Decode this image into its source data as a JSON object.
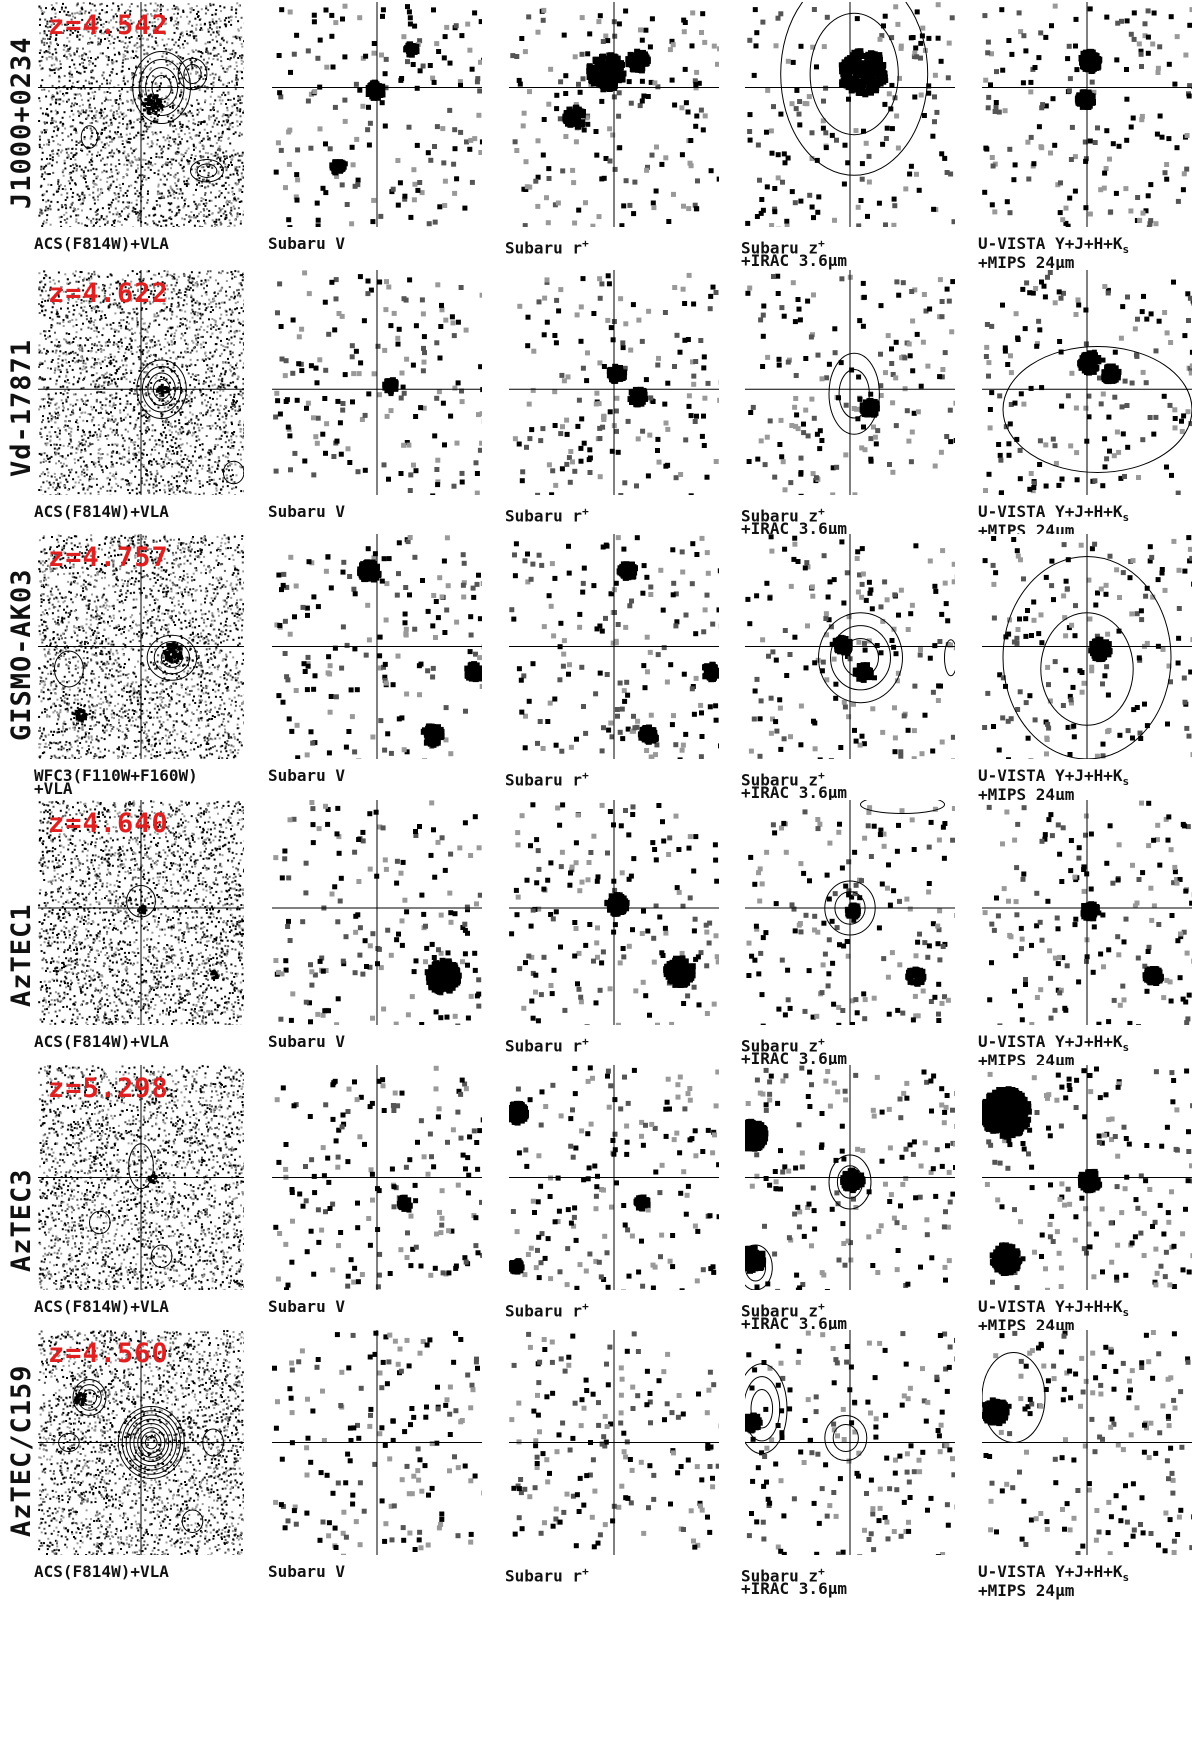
{
  "figure": {
    "crosshair_color": "#000000",
    "redshift_color": "#e02020",
    "captions": {
      "acs": "ACS(F814W)+VLA",
      "wfc3_line1": "WFC3(F110W+F160W)",
      "wfc3_line2": "+VLA",
      "subaru_v": "Subaru V",
      "subaru_r": "Subaru r",
      "subaru_r_sup": "+",
      "subaru_z_line1": "Subaru z",
      "subaru_z_sup": "+",
      "subaru_z_line2": "+IRAC 3.6μm",
      "uvista_line1": "U-VISTA Y+J+H+K",
      "uvista_sub": "s",
      "uvista_line2": "+MIPS 24μm"
    },
    "rows": [
      {
        "name": "J1000+0234",
        "redshift": "z=4.542",
        "first_caption": "acs"
      },
      {
        "name": "Vd-17871",
        "redshift": "z=4.622",
        "first_caption": "acs"
      },
      {
        "name": "GISMO-AK03",
        "redshift": "z=4.757",
        "first_caption": "wfc3"
      },
      {
        "name": "AzTEC1",
        "redshift": "z=4.640",
        "first_caption": "acs"
      },
      {
        "name": "AzTEC3",
        "redshift": "z=5.298",
        "first_caption": "acs"
      },
      {
        "name": "AzTEC/C159",
        "redshift": "z=4.560",
        "first_caption": "acs"
      }
    ]
  }
}
